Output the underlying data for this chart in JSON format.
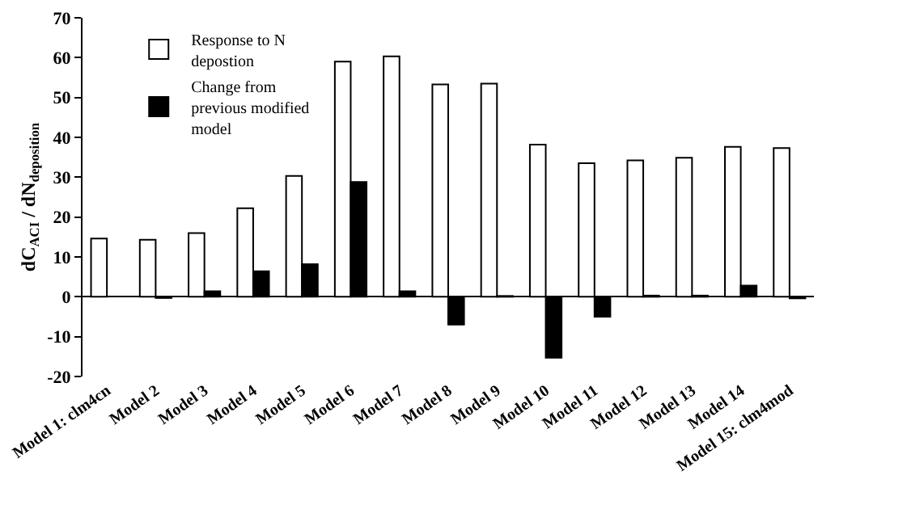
{
  "chart_data": {
    "type": "bar",
    "ylabel": "dC$_{ACI}$ / dN$_{deposition}$",
    "categories": [
      "Model 1: clm4cn",
      "Model 2",
      "Model 3",
      "Model 4",
      "Model 5",
      "Model 6",
      "Model 7",
      "Model 8",
      "Model 9",
      "Model 10",
      "Model 11",
      "Model 12",
      "Model 13",
      "Model 14",
      "Model 15: clm4mod"
    ],
    "series": [
      {
        "name": "Response to N depostion",
        "color": "#ffffff",
        "values": [
          14.6,
          14.3,
          16,
          22.2,
          30.3,
          59,
          60.3,
          53.3,
          53.5,
          38.2,
          33.5,
          34.2,
          34.9,
          37.6,
          37.3
        ]
      },
      {
        "name": "Change from previous modified model",
        "color": "#000000",
        "values": [
          null,
          -0.3,
          1.4,
          6.4,
          8.2,
          28.8,
          1.4,
          -7,
          0.2,
          -15.3,
          -5,
          0.3,
          0.3,
          2.8,
          -0.4
        ]
      }
    ],
    "ylim": [
      -20,
      70
    ],
    "yticks": [
      -20,
      -10,
      0,
      10,
      20,
      30,
      40,
      50,
      60,
      70
    ],
    "legend": "top left"
  }
}
